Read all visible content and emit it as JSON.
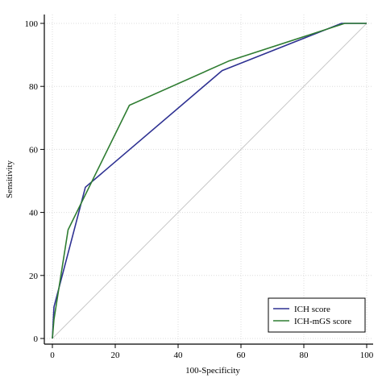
{
  "chart_data": {
    "type": "line",
    "xlabel": "100-Specificity",
    "ylabel": "Sensitivity",
    "xlim": [
      0,
      100
    ],
    "ylim": [
      0,
      100
    ],
    "xticks": [
      0,
      20,
      40,
      60,
      80,
      100
    ],
    "yticks": [
      0,
      20,
      40,
      60,
      80,
      100
    ],
    "grid": true,
    "legend_position": "bottom-right",
    "reference_line": {
      "x": [
        0,
        100
      ],
      "y": [
        0,
        100
      ],
      "color": "#c8c8c8"
    },
    "series": [
      {
        "name": "ICH score",
        "color": "#2e3192",
        "x": [
          0,
          0,
          0.5,
          10.5,
          54,
          92,
          100
        ],
        "y": [
          0,
          0,
          10,
          48,
          85,
          100,
          100
        ]
      },
      {
        "name": "ICH-mGS score",
        "color": "#2f7d32",
        "x": [
          0,
          0,
          0.5,
          5,
          24.5,
          56,
          93,
          100
        ],
        "y": [
          0,
          0,
          6,
          34.5,
          74,
          88,
          100,
          100
        ]
      }
    ]
  }
}
